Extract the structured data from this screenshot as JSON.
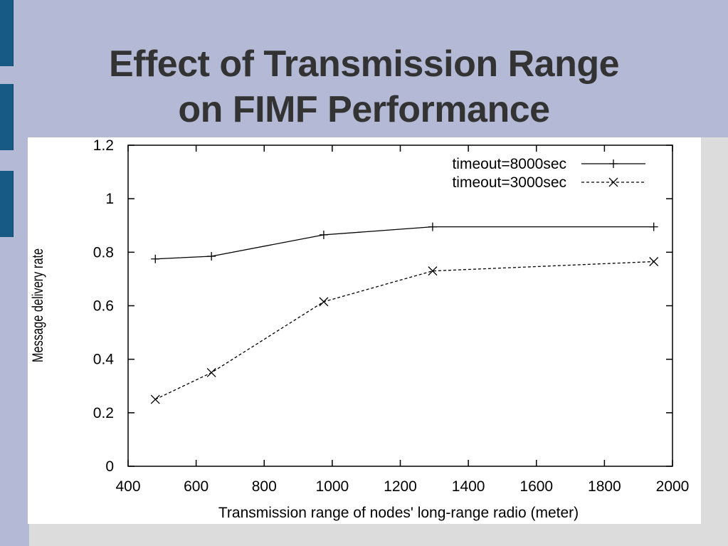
{
  "slide": {
    "title_line1": "Effect of Transmission Range",
    "title_line2": "on FIMF Performance"
  },
  "colors": {
    "background": "#b4b9d6",
    "tab": "#175a86",
    "panel": "#dcdcdc",
    "title": "#333333"
  },
  "chart_data": {
    "type": "line",
    "title": "",
    "xlabel": "Transmission range of nodes' long-range radio (meter)",
    "ylabel": "Message delivery rate",
    "xlim": [
      400,
      2000
    ],
    "ylim": [
      0,
      1.2
    ],
    "xticks": [
      400,
      600,
      800,
      1000,
      1200,
      1400,
      1600,
      1800,
      2000
    ],
    "yticks": [
      0,
      0.2,
      0.4,
      0.6,
      0.8,
      1,
      1.2
    ],
    "ytick_labels": [
      "0",
      "0.2",
      "0.4",
      "0.6",
      "0.8",
      "1",
      "1.2"
    ],
    "grid": false,
    "legend_position": "top-right",
    "series": [
      {
        "name": "timeout=8000sec",
        "marker": "plus",
        "line": "solid",
        "x": [
          480,
          645,
          975,
          1295,
          1945
        ],
        "y": [
          0.775,
          0.785,
          0.865,
          0.895,
          0.895
        ]
      },
      {
        "name": "timeout=3000sec",
        "marker": "cross",
        "line": "dashed",
        "x": [
          480,
          645,
          975,
          1295,
          1945
        ],
        "y": [
          0.25,
          0.35,
          0.615,
          0.73,
          0.765
        ]
      }
    ]
  }
}
